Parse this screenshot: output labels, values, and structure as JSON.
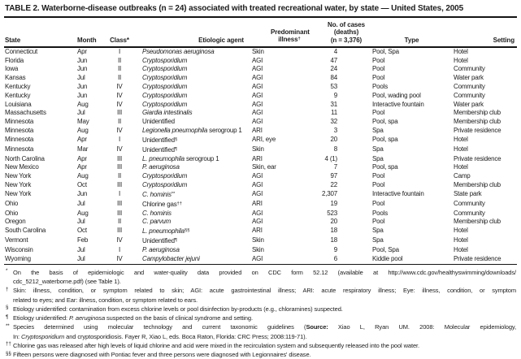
{
  "colors": {
    "background": "#ffffff",
    "text": "#1c1c1c",
    "rule": "#141414"
  },
  "title": "TABLE 2. Waterborne-disease outbreaks (n = 24) associated with treated recreational water, by state — United States, 2005",
  "table": {
    "header": {
      "state": "State",
      "month": "Month",
      "class_label": "Class*",
      "agent": "Etiologic agent",
      "illness_line1": "Predominant",
      "illness_line2": "illness",
      "illness_sup": "†",
      "cases_line1": "No. of cases",
      "cases_line2": "(deaths)",
      "cases_line3": "(n = 3,376)",
      "type": "Type",
      "setting": "Setting"
    },
    "rows": [
      {
        "state": "Connecticut",
        "month": "Apr",
        "class": "I",
        "agent": [
          [
            "Pseudomonas aeruginosa",
            "i"
          ]
        ],
        "illness": "Skin",
        "cases": "4",
        "type": "Pool, Spa",
        "setting": "Hotel"
      },
      {
        "state": "Florida",
        "month": "Jun",
        "class": "II",
        "agent": [
          [
            "Cryptosporidium",
            "i"
          ]
        ],
        "illness": "AGI",
        "cases": "47",
        "type": "Pool",
        "setting": "Hotel"
      },
      {
        "state": "Iowa",
        "month": "Jun",
        "class": "II",
        "agent": [
          [
            "Cryptosporidium",
            "i"
          ]
        ],
        "illness": "AGI",
        "cases": "24",
        "type": "Pool",
        "setting": "Community"
      },
      {
        "state": "Kansas",
        "month": "Jul",
        "class": "II",
        "agent": [
          [
            "Cryptosporidium",
            "i"
          ]
        ],
        "illness": "AGI",
        "cases": "84",
        "type": "Pool",
        "setting": "Water park"
      },
      {
        "state": "Kentucky",
        "month": "Jun",
        "class": "IV",
        "agent": [
          [
            "Cryptosporidium",
            "i"
          ]
        ],
        "illness": "AGI",
        "cases": "53",
        "type": "Pools",
        "setting": "Community"
      },
      {
        "state": "Kentucky",
        "month": "Jun",
        "class": "IV",
        "agent": [
          [
            "Cryptosporidium",
            "i"
          ]
        ],
        "illness": "AGI",
        "cases": "9",
        "type": "Pool, wading pool",
        "setting": "Community"
      },
      {
        "state": "Louisiana",
        "month": "Aug",
        "class": "IV",
        "agent": [
          [
            "Cryptosporidium",
            "i"
          ]
        ],
        "illness": "AGI",
        "cases": "31",
        "type": "Interactive fountain",
        "setting": "Water park"
      },
      {
        "state": "Massachusetts",
        "month": "Jul",
        "class": "III",
        "agent": [
          [
            "Giardia intestinalis",
            "i"
          ]
        ],
        "illness": "AGI",
        "cases": "11",
        "type": "Pool",
        "setting": "Membership club"
      },
      {
        "state": "Minnesota",
        "month": "May",
        "class": "II",
        "agent": [
          [
            "Unidentified",
            ""
          ]
        ],
        "illness": "AGI",
        "cases": "32",
        "type": "Pool, spa",
        "setting": "Membership club"
      },
      {
        "state": "Minnesota",
        "month": "Aug",
        "class": "IV",
        "agent": [
          [
            "Legionella pneumophila",
            "i"
          ],
          [
            " serogroup 1",
            ""
          ]
        ],
        "illness": "ARI",
        "cases": "3",
        "type": "Spa",
        "setting": "Private residence"
      },
      {
        "state": "Minnesota",
        "month": "Apr",
        "class": "I",
        "agent": [
          [
            "Unidentified",
            ""
          ],
          [
            "§",
            "sup"
          ]
        ],
        "illness": "ARI, eye",
        "cases": "20",
        "type": "Pool, spa",
        "setting": "Hotel"
      },
      {
        "state": "Minnesota",
        "month": "Mar",
        "class": "IV",
        "agent": [
          [
            "Unidentified",
            ""
          ],
          [
            "¶",
            "sup"
          ]
        ],
        "illness": "Skin",
        "cases": "8",
        "type": "Spa",
        "setting": "Hotel"
      },
      {
        "state": "North Carolina",
        "month": "Apr",
        "class": "III",
        "agent": [
          [
            "L. pneumophila",
            "i"
          ],
          [
            " serogroup 1",
            ""
          ]
        ],
        "illness": "ARI",
        "cases": "4 (1)",
        "type": "Spa",
        "setting": "Private residence"
      },
      {
        "state": "New Mexico",
        "month": "Apr",
        "class": "III",
        "agent": [
          [
            "P. aeruginosa",
            "i"
          ]
        ],
        "illness": "Skin, ear",
        "cases": "7",
        "type": "Pool, spa",
        "setting": "Hotel"
      },
      {
        "state": "New York",
        "month": "Aug",
        "class": "II",
        "agent": [
          [
            "Cryptosporidium",
            "i"
          ]
        ],
        "illness": "AGI",
        "cases": "97",
        "type": "Pool",
        "setting": "Camp"
      },
      {
        "state": "New York",
        "month": "Oct",
        "class": "III",
        "agent": [
          [
            "Cryptosporidium",
            "i"
          ]
        ],
        "illness": "AGI",
        "cases": "22",
        "type": "Pool",
        "setting": "Membership club"
      },
      {
        "state": "New York",
        "month": "Jun",
        "class": "I",
        "agent": [
          [
            "C. hominis",
            "i"
          ],
          [
            "**",
            "sup"
          ]
        ],
        "illness": "AGI",
        "cases": "2,307",
        "type": "Interactive fountain",
        "setting": "State park"
      },
      {
        "state": "Ohio",
        "month": "Jul",
        "class": "III",
        "agent": [
          [
            "Chlorine gas",
            ""
          ],
          [
            "††",
            "sup"
          ]
        ],
        "illness": "ARI",
        "cases": "19",
        "type": "Pool",
        "setting": "Community"
      },
      {
        "state": "Ohio",
        "month": "Aug",
        "class": "III",
        "agent": [
          [
            "C. hominis",
            "i"
          ]
        ],
        "illness": "AGI",
        "cases": "523",
        "type": "Pools",
        "setting": "Community"
      },
      {
        "state": "Oregon",
        "month": "Jul",
        "class": "II",
        "agent": [
          [
            "C. parvum",
            "i"
          ]
        ],
        "illness": "AGI",
        "cases": "20",
        "type": "Pool",
        "setting": "Membership club"
      },
      {
        "state": "South Carolina",
        "month": "Oct",
        "class": "III",
        "agent": [
          [
            "L. pneumophila",
            "i"
          ],
          [
            "§§",
            "sup"
          ]
        ],
        "illness": "ARI",
        "cases": "18",
        "type": "Spa",
        "setting": "Hotel"
      },
      {
        "state": "Vermont",
        "month": "Feb",
        "class": "IV",
        "agent": [
          [
            "Unidentified",
            ""
          ],
          [
            "¶",
            "sup"
          ]
        ],
        "illness": "Skin",
        "cases": "18",
        "type": "Spa",
        "setting": "Hotel"
      },
      {
        "state": "Wisconsin",
        "month": "Jul",
        "class": "I",
        "agent": [
          [
            "P. aeruginosa",
            "i"
          ]
        ],
        "illness": "Skin",
        "cases": "9",
        "type": "Pool, Spa",
        "setting": "Hotel"
      },
      {
        "state": "Wyoming",
        "month": "Jul",
        "class": "IV",
        "agent": [
          [
            "Campylobacter jejuni",
            "i"
          ]
        ],
        "illness": "AGI",
        "cases": "6",
        "type": "Kiddie pool",
        "setting": "Private residence"
      }
    ]
  },
  "footnotes": [
    {
      "marker": "*",
      "lines": [
        [
          [
            "On the basis of epidemiologic and water-quality data provided on CDC form 52.12 (available at http://www.cdc.gov/healthyswimming/downloads/",
            ""
          ]
        ],
        [
          [
            "cdc_5212_waterborne.pdf) (see Table 1).",
            ""
          ]
        ]
      ]
    },
    {
      "marker": "†",
      "lines": [
        [
          [
            "Skin: illness, condition, or symptom related to skin; AGI: acute gastrointestinal illness; ARI: acute respiratory illness; Eye: illness, condition, or symptom",
            ""
          ]
        ],
        [
          [
            "related to eyes; and Ear: illness, condition, or symptom related to ears.",
            ""
          ]
        ]
      ]
    },
    {
      "marker": "§",
      "lines": [
        [
          [
            "Etiology unidentified: contamination from excess chlorine levels or pool disinfection by-products (e.g., chloramines) suspected.",
            ""
          ]
        ]
      ]
    },
    {
      "marker": "¶",
      "lines": [
        [
          [
            "Etiology unidentified: ",
            ""
          ],
          [
            "P. aeruginosa",
            "i"
          ],
          [
            " suspected on the basis of clinical syndrome and setting.",
            ""
          ]
        ]
      ]
    },
    {
      "marker": "**",
      "lines": [
        [
          [
            "Species determined using molecular technology and current taxonomic guidelines (",
            ""
          ],
          [
            "Source:",
            "b"
          ],
          [
            " Xiao L, Ryan UM. 2008: Molecular epidemiology,",
            ""
          ]
        ],
        [
          [
            "In: ",
            ""
          ],
          [
            "Cryptosporidium",
            "i"
          ],
          [
            " and cryptosporidiosis. Fayer R, Xiao L, eds. Boca Raton, Florida: CRC Press; 2008:119-71).",
            ""
          ]
        ]
      ]
    },
    {
      "marker": "††",
      "lines": [
        [
          [
            "Chlorine gas was released after high levels of liquid chlorine and acid were mixed in the recirculation system and subsequently released into the pool water.",
            ""
          ]
        ]
      ]
    },
    {
      "marker": "§§",
      "lines": [
        [
          [
            "Fifteen persons were diagnosed with Pontiac fever and three persons were diagnosed with Legionnaires' disease.",
            ""
          ]
        ]
      ]
    }
  ]
}
